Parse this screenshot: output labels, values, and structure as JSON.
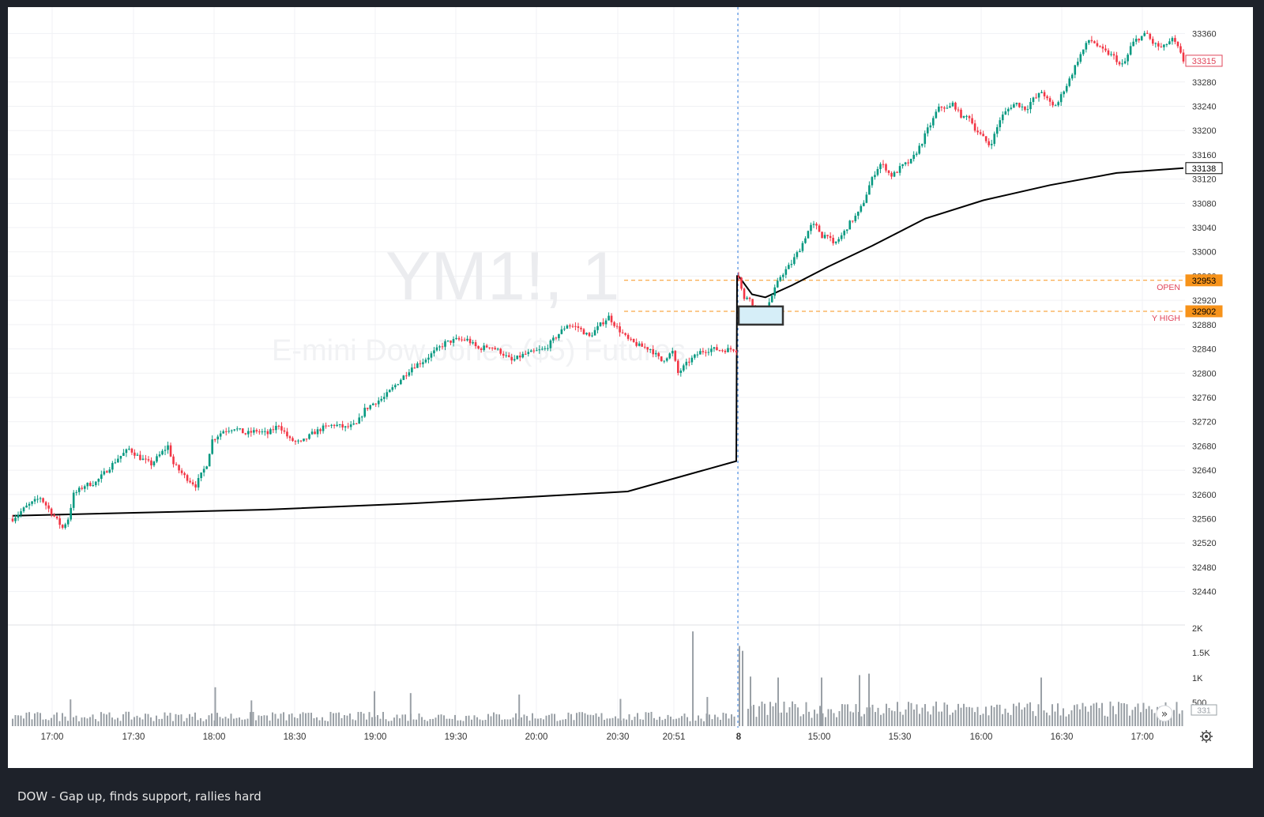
{
  "caption": "DOW - Gap up, finds support, rallies hard",
  "chart_data": {
    "type": "candlestick",
    "symbol_watermark": "YM1!, 1",
    "description_watermark": "E-mini Dow Jones ($5) Futures",
    "price_axis": {
      "min": 32420,
      "max": 33380,
      "ticks": [
        33360,
        33320,
        33280,
        33240,
        33200,
        33160,
        33120,
        33080,
        33040,
        33000,
        32960,
        32920,
        32880,
        32840,
        32800,
        32760,
        32720,
        32680,
        32640,
        32600,
        32560,
        32520,
        32480,
        32440
      ]
    },
    "time_axis": {
      "labels": [
        "17:00",
        "17:30",
        "18:00",
        "18:30",
        "19:00",
        "19:30",
        "20:00",
        "20:30",
        "20:51",
        "8",
        "15:00",
        "15:30",
        "16:00",
        "16:30",
        "17:00"
      ],
      "session_break_label": "8"
    },
    "price_labels": [
      {
        "value": 33315,
        "text": "33315",
        "style": "last-price",
        "color": "#e0455a"
      },
      {
        "value": 33138,
        "text": "33138",
        "style": "vwap",
        "color": "#000000"
      },
      {
        "value": 32953,
        "text": "32953",
        "style": "level",
        "color": "#f7931a"
      },
      {
        "value": 32902,
        "text": "32902",
        "style": "level",
        "color": "#f7931a"
      }
    ],
    "levels": [
      {
        "name": "OPEN",
        "value": 32953,
        "color": "#f7931a"
      },
      {
        "name": "Y HIGH",
        "value": 32902,
        "color": "#f7931a"
      }
    ],
    "session1_path": [
      [
        0,
        32560
      ],
      [
        5,
        32580
      ],
      [
        10,
        32595
      ],
      [
        14,
        32570
      ],
      [
        18,
        32545
      ],
      [
        20,
        32560
      ],
      [
        22,
        32600
      ],
      [
        26,
        32615
      ],
      [
        30,
        32620
      ],
      [
        34,
        32640
      ],
      [
        38,
        32660
      ],
      [
        42,
        32675
      ],
      [
        46,
        32660
      ],
      [
        50,
        32650
      ],
      [
        54,
        32670
      ],
      [
        56,
        32680
      ],
      [
        58,
        32650
      ],
      [
        62,
        32630
      ],
      [
        66,
        32615
      ],
      [
        70,
        32650
      ],
      [
        72,
        32690
      ],
      [
        76,
        32705
      ],
      [
        80,
        32710
      ],
      [
        84,
        32700
      ],
      [
        88,
        32705
      ],
      [
        92,
        32700
      ],
      [
        96,
        32715
      ],
      [
        100,
        32690
      ],
      [
        104,
        32685
      ],
      [
        108,
        32700
      ],
      [
        112,
        32710
      ],
      [
        116,
        32715
      ],
      [
        120,
        32710
      ],
      [
        124,
        32715
      ],
      [
        127,
        32740
      ],
      [
        130,
        32750
      ],
      [
        134,
        32760
      ],
      [
        136,
        32770
      ],
      [
        140,
        32790
      ],
      [
        144,
        32810
      ],
      [
        148,
        32820
      ],
      [
        152,
        32835
      ],
      [
        156,
        32850
      ],
      [
        160,
        32855
      ],
      [
        164,
        32855
      ],
      [
        168,
        32840
      ],
      [
        172,
        32845
      ],
      [
        176,
        32835
      ],
      [
        180,
        32820
      ],
      [
        184,
        32830
      ],
      [
        188,
        32835
      ],
      [
        192,
        32840
      ],
      [
        196,
        32860
      ],
      [
        200,
        32880
      ],
      [
        204,
        32875
      ],
      [
        208,
        32860
      ],
      [
        212,
        32880
      ],
      [
        215,
        32893
      ],
      [
        218,
        32875
      ],
      [
        222,
        32855
      ],
      [
        226,
        32845
      ],
      [
        230,
        32840
      ],
      [
        234,
        32820
      ],
      [
        238,
        32835
      ],
      [
        240,
        32800
      ],
      [
        244,
        32820
      ],
      [
        248,
        32835
      ],
      [
        252,
        32840
      ],
      [
        256,
        32838
      ],
      [
        260,
        32840
      ],
      [
        261,
        32838
      ]
    ],
    "session2_path": [
      [
        0,
        32960
      ],
      [
        2,
        32920
      ],
      [
        4,
        32930
      ],
      [
        6,
        32900
      ],
      [
        8,
        32880
      ],
      [
        10,
        32900
      ],
      [
        12,
        32920
      ],
      [
        14,
        32940
      ],
      [
        16,
        32960
      ],
      [
        18,
        32970
      ],
      [
        20,
        32980
      ],
      [
        22,
        32995
      ],
      [
        24,
        33010
      ],
      [
        26,
        33030
      ],
      [
        28,
        33045
      ],
      [
        30,
        33040
      ],
      [
        32,
        33025
      ],
      [
        34,
        33030
      ],
      [
        36,
        33010
      ],
      [
        38,
        33020
      ],
      [
        40,
        33030
      ],
      [
        42,
        33045
      ],
      [
        44,
        33055
      ],
      [
        46,
        33065
      ],
      [
        48,
        33085
      ],
      [
        50,
        33110
      ],
      [
        52,
        33130
      ],
      [
        54,
        33145
      ],
      [
        56,
        33140
      ],
      [
        58,
        33125
      ],
      [
        60,
        33130
      ],
      [
        62,
        33140
      ],
      [
        64,
        33145
      ],
      [
        66,
        33150
      ],
      [
        68,
        33165
      ],
      [
        70,
        33180
      ],
      [
        72,
        33200
      ],
      [
        74,
        33215
      ],
      [
        76,
        33235
      ],
      [
        78,
        33240
      ],
      [
        80,
        33235
      ],
      [
        82,
        33245
      ],
      [
        84,
        33230
      ],
      [
        86,
        33220
      ],
      [
        88,
        33225
      ],
      [
        90,
        33205
      ],
      [
        92,
        33195
      ],
      [
        94,
        33185
      ],
      [
        96,
        33175
      ],
      [
        98,
        33195
      ],
      [
        100,
        33220
      ],
      [
        102,
        33230
      ],
      [
        104,
        33240
      ],
      [
        106,
        33245
      ],
      [
        108,
        33240
      ],
      [
        110,
        33235
      ],
      [
        112,
        33250
      ],
      [
        114,
        33255
      ],
      [
        116,
        33265
      ],
      [
        118,
        33250
      ],
      [
        120,
        33240
      ],
      [
        122,
        33245
      ],
      [
        124,
        33265
      ],
      [
        126,
        33280
      ],
      [
        128,
        33300
      ],
      [
        130,
        33320
      ],
      [
        132,
        33335
      ],
      [
        134,
        33350
      ],
      [
        136,
        33345
      ],
      [
        138,
        33335
      ],
      [
        140,
        33330
      ],
      [
        142,
        33325
      ],
      [
        144,
        33320
      ],
      [
        146,
        33305
      ],
      [
        148,
        33315
      ],
      [
        150,
        33340
      ],
      [
        152,
        33350
      ],
      [
        154,
        33355
      ],
      [
        156,
        33360
      ],
      [
        158,
        33345
      ],
      [
        160,
        33340
      ],
      [
        162,
        33335
      ],
      [
        164,
        33345
      ],
      [
        166,
        33350
      ],
      [
        168,
        33335
      ],
      [
        170,
        33315
      ]
    ],
    "vwap_session1": [
      [
        0,
        32565
      ],
      [
        0.35,
        32575
      ],
      [
        0.55,
        32585
      ],
      [
        0.85,
        32605
      ],
      [
        1,
        32655
      ]
    ],
    "vwap_session2": [
      [
        0,
        32960
      ],
      [
        0.03,
        32930
      ],
      [
        0.06,
        32925
      ],
      [
        0.12,
        32945
      ],
      [
        0.2,
        32975
      ],
      [
        0.3,
        33010
      ],
      [
        0.42,
        33055
      ],
      [
        0.55,
        33085
      ],
      [
        0.7,
        33110
      ],
      [
        0.85,
        33130
      ],
      [
        1,
        33138
      ]
    ],
    "volume": {
      "ticks": [
        "2K",
        "1.5K",
        "1K",
        "500"
      ],
      "max": 2000,
      "last_label": "331",
      "session1_typical": 220,
      "session2_typical": 380,
      "spikes": [
        [
          0.08,
          550
        ],
        [
          0.28,
          800
        ],
        [
          0.33,
          530
        ],
        [
          0.5,
          720
        ],
        [
          0.55,
          680
        ],
        [
          0.7,
          650
        ],
        [
          0.84,
          560
        ],
        [
          0.94,
          1950
        ],
        [
          0.96,
          600
        ]
      ]
    },
    "highlight_box": {
      "low": 32880,
      "high": 32910
    },
    "grid": true
  }
}
